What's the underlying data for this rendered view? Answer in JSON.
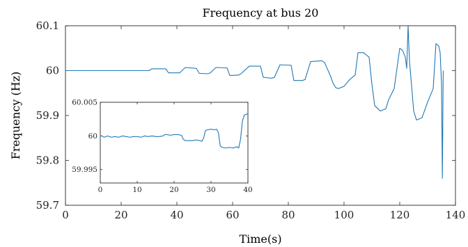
{
  "chart_data": [
    {
      "type": "line",
      "title": "Frequency at bus 20",
      "xlabel": "Time(s)",
      "ylabel": "Frequency (Hz)",
      "xlim": [
        0,
        140
      ],
      "ylim": [
        59.7,
        60.1
      ],
      "xticks": [
        "0",
        "20",
        "40",
        "60",
        "80",
        "100",
        "120",
        "140"
      ],
      "yticks": [
        "59.7",
        "59.8",
        "59.9",
        "60",
        "60.1"
      ],
      "grid": false,
      "color": "#1f77b4",
      "series": [
        {
          "x": [
            0,
            10,
            20,
            30,
            31,
            33,
            36,
            37,
            40,
            41,
            43,
            47,
            48,
            51,
            52,
            54,
            58,
            59,
            62,
            63,
            66,
            70,
            71,
            74,
            75,
            77,
            81,
            82,
            85,
            86,
            88,
            92,
            93,
            95,
            96,
            97,
            98,
            100,
            102,
            104,
            105,
            107,
            108,
            109,
            110,
            111,
            113,
            115,
            116,
            118,
            120,
            121,
            122,
            122.5,
            123,
            123.5,
            124,
            125,
            126,
            128,
            130,
            132,
            133,
            134,
            134.5,
            135,
            135.3,
            135.6
          ],
          "y": [
            60.0,
            60.0,
            60.0,
            60.0,
            60.004,
            60.004,
            60.004,
            59.995,
            59.995,
            59.995,
            60.007,
            60.005,
            59.994,
            59.993,
            59.995,
            60.007,
            60.006,
            59.989,
            59.99,
            59.993,
            60.01,
            60.01,
            59.985,
            59.983,
            59.985,
            60.013,
            60.012,
            59.978,
            59.978,
            59.98,
            60.02,
            60.022,
            60.018,
            59.99,
            59.973,
            59.962,
            59.96,
            59.965,
            59.98,
            59.99,
            60.04,
            60.04,
            60.035,
            60.03,
            59.97,
            59.922,
            59.91,
            59.915,
            59.935,
            59.96,
            60.05,
            60.045,
            60.03,
            60.005,
            60.1,
            60.02,
            59.985,
            59.91,
            59.89,
            59.895,
            59.93,
            59.96,
            60.06,
            60.055,
            60.04,
            59.97,
            59.76,
            60.0
          ]
        }
      ]
    },
    {
      "type": "line",
      "title": "",
      "xlabel": "",
      "ylabel": "",
      "xlim": [
        0,
        40
      ],
      "ylim": [
        59.993,
        60.005
      ],
      "xticks": [
        "0",
        "10",
        "20",
        "30",
        "40"
      ],
      "yticks": [
        "59.995",
        "60",
        "60.005"
      ],
      "grid": false,
      "color": "#1f77b4",
      "series": [
        {
          "x": [
            0,
            0.5,
            1,
            2,
            3,
            4,
            5,
            6,
            7,
            8,
            9,
            10,
            11,
            12,
            13,
            14,
            15,
            16,
            17,
            17.5,
            18,
            19,
            20,
            21,
            22,
            22.5,
            23,
            24,
            25,
            26,
            27,
            27.5,
            28,
            28.5,
            29,
            30,
            31,
            31.5,
            32,
            32.5,
            33,
            34,
            35,
            36,
            37,
            37.5,
            38,
            38.5,
            39,
            39.5,
            40
          ],
          "y": [
            60.0,
            60.0,
            59.9998,
            60.0,
            59.9998,
            59.9999,
            59.9998,
            60.0,
            59.9999,
            59.9998,
            59.9999,
            59.9999,
            59.9998,
            60.0,
            59.9999,
            60.0,
            59.9999,
            59.9999,
            60.0,
            60.0002,
            60.0002,
            60.0001,
            60.0002,
            60.0002,
            60.0001,
            59.9995,
            59.9993,
            59.9993,
            59.9993,
            59.9994,
            59.9993,
            59.9992,
            59.9997,
            60.0008,
            60.0009,
            60.001,
            60.0009,
            60.001,
            60.0005,
            59.9985,
            59.9983,
            59.9982,
            59.9983,
            59.9982,
            59.9984,
            59.9982,
            59.9995,
            60.0022,
            60.0031,
            60.0032,
            60.0033
          ]
        }
      ]
    }
  ]
}
